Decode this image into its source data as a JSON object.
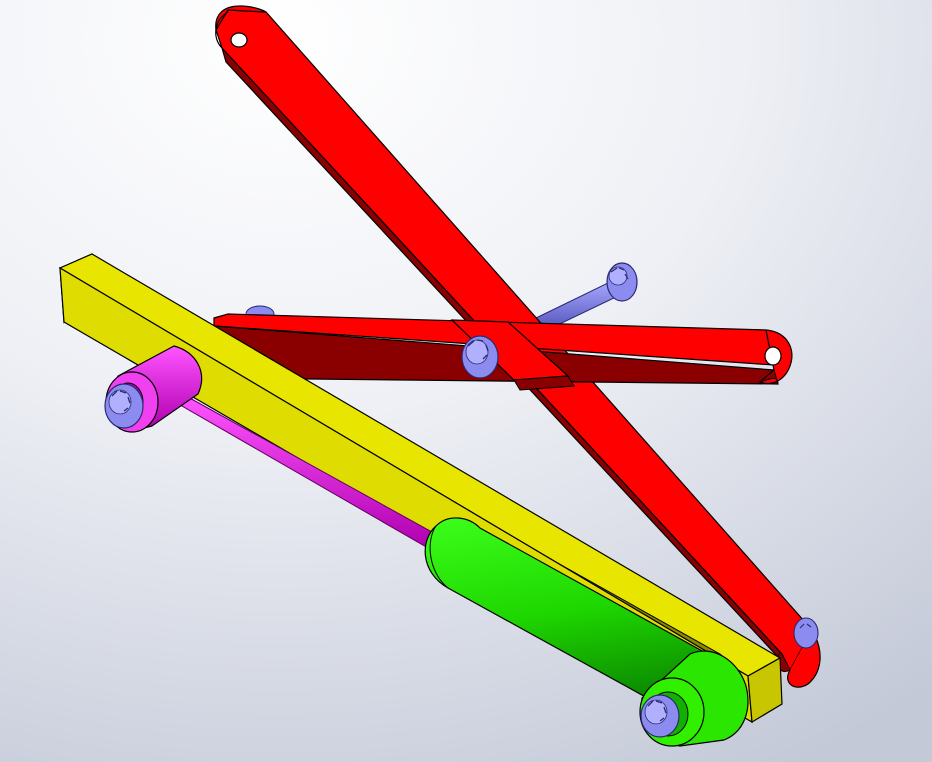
{
  "viewport": {
    "background_top": "#ffffff",
    "background_bottom": "#c9cedd"
  },
  "model": {
    "parts": [
      {
        "name": "long-red-link",
        "color": "#ff0000",
        "shade": "#8a0000"
      },
      {
        "name": "short-red-link",
        "color": "#ff0000",
        "shade": "#8a0000"
      },
      {
        "name": "yellow-slotted-base",
        "color": "#e8e600",
        "shade": "#b5b200"
      },
      {
        "name": "green-cylinder",
        "color": "#22e000",
        "shade": "#0d9a00"
      },
      {
        "name": "magenta-piston-rod",
        "color": "#ee22ee",
        "shade": "#a000a0"
      },
      {
        "name": "blue-pins",
        "color": "#7f7fe6",
        "shade": "#3c3c9a"
      }
    ]
  }
}
